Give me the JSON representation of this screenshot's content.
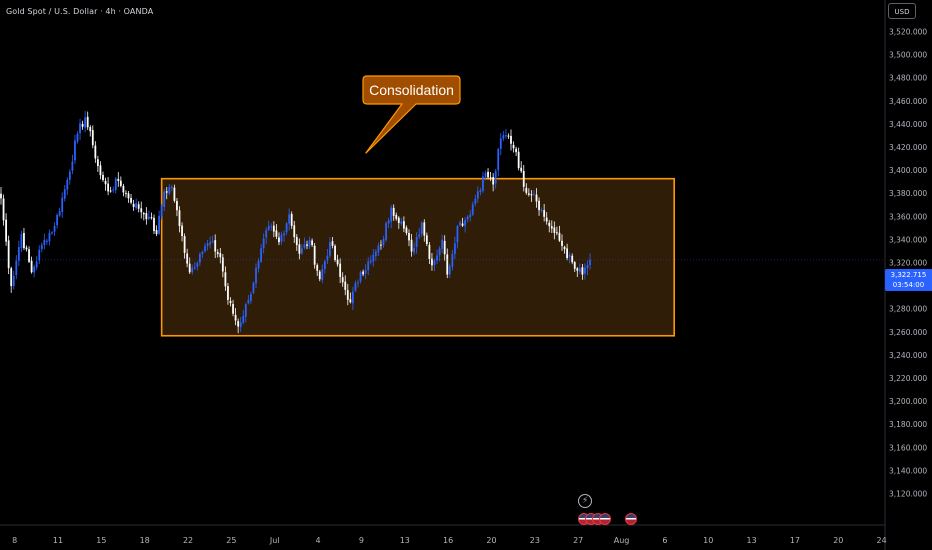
{
  "header": {
    "title": "Gold Spot / U.S. Dollar · 4h · OANDA",
    "currency": "USD"
  },
  "price_tag": {
    "price": "3,322.715",
    "countdown": "03:54:00"
  },
  "annotation": {
    "text": "Consolidation",
    "fill": "#a04d00",
    "border": "#ff9800"
  },
  "colors": {
    "up": "#2962ff",
    "down": "#ffffff",
    "zone_fill": "#2f1d08",
    "zone_border": "#ff9800",
    "axis_text": "#b2b5be",
    "background": "#000000"
  },
  "events": {
    "flash_icon": "lightning-icon",
    "flags": [
      "us-flag-icon",
      "us-flag-icon",
      "us-flag-icon",
      "us-flag-icon",
      "us-flag-icon"
    ]
  },
  "chart_data": {
    "type": "candlestick",
    "title": "Gold Spot / U.S. Dollar · 4h · OANDA",
    "ylim": [
      3115,
      3530
    ],
    "y_ticks": [
      3120,
      3140,
      3160,
      3180,
      3200,
      3220,
      3240,
      3260,
      3280,
      3300,
      3320,
      3340,
      3360,
      3380,
      3400,
      3420,
      3440,
      3460,
      3480,
      3500,
      3520
    ],
    "y_tick_labels": [
      "3,120.000",
      "3,140.000",
      "3,160.000",
      "3,180.000",
      "3,200.000",
      "3,220.000",
      "3,240.000",
      "3,260.000",
      "3,280.000",
      "3,300.000",
      "3,320.000",
      "3,340.000",
      "3,360.000",
      "3,380.000",
      "3,400.000",
      "3,420.000",
      "3,440.000",
      "3,460.000",
      "3,480.000",
      "3,500.000",
      "3,520.000"
    ],
    "x_ticks": [
      "8",
      "11",
      "15",
      "18",
      "22",
      "25",
      "Jul",
      "4",
      "9",
      "13",
      "16",
      "20",
      "23",
      "27",
      "Aug",
      "6",
      "10",
      "13",
      "17",
      "20",
      "24"
    ],
    "x_tick_index": [
      3,
      20,
      37,
      54,
      71,
      88,
      105,
      122,
      139,
      156,
      173,
      190,
      207,
      224,
      241,
      258,
      275,
      292,
      309,
      326,
      343
    ],
    "last_price": 3322.715,
    "zone": {
      "index_start": 63,
      "index_end": 264,
      "price_low": 3257,
      "price_high": 3393
    },
    "callout_pointer": {
      "index": 143,
      "price": 3415
    },
    "key_prices": [
      {
        "i": 0,
        "c": 3376
      },
      {
        "i": 4,
        "c": 3300
      },
      {
        "i": 8,
        "c": 3345
      },
      {
        "i": 12,
        "c": 3312
      },
      {
        "i": 17,
        "c": 3340
      },
      {
        "i": 21,
        "c": 3352
      },
      {
        "i": 26,
        "c": 3392
      },
      {
        "i": 30,
        "c": 3432
      },
      {
        "i": 33,
        "c": 3446
      },
      {
        "i": 36,
        "c": 3422
      },
      {
        "i": 39,
        "c": 3396
      },
      {
        "i": 42,
        "c": 3382
      },
      {
        "i": 46,
        "c": 3391
      },
      {
        "i": 50,
        "c": 3376
      },
      {
        "i": 54,
        "c": 3367
      },
      {
        "i": 58,
        "c": 3360
      },
      {
        "i": 61,
        "c": 3345
      },
      {
        "i": 64,
        "c": 3382
      },
      {
        "i": 67,
        "c": 3386
      },
      {
        "i": 70,
        "c": 3352
      },
      {
        "i": 74,
        "c": 3312
      },
      {
        "i": 78,
        "c": 3328
      },
      {
        "i": 82,
        "c": 3338
      },
      {
        "i": 86,
        "c": 3325
      },
      {
        "i": 89,
        "c": 3288
      },
      {
        "i": 93,
        "c": 3265
      },
      {
        "i": 97,
        "c": 3288
      },
      {
        "i": 101,
        "c": 3322
      },
      {
        "i": 105,
        "c": 3352
      },
      {
        "i": 109,
        "c": 3338
      },
      {
        "i": 113,
        "c": 3362
      },
      {
        "i": 117,
        "c": 3328
      },
      {
        "i": 121,
        "c": 3340
      },
      {
        "i": 125,
        "c": 3306
      },
      {
        "i": 129,
        "c": 3338
      },
      {
        "i": 133,
        "c": 3308
      },
      {
        "i": 137,
        "c": 3286
      },
      {
        "i": 141,
        "c": 3312
      },
      {
        "i": 145,
        "c": 3322
      },
      {
        "i": 149,
        "c": 3335
      },
      {
        "i": 153,
        "c": 3368
      },
      {
        "i": 157,
        "c": 3356
      },
      {
        "i": 161,
        "c": 3330
      },
      {
        "i": 165,
        "c": 3355
      },
      {
        "i": 169,
        "c": 3318
      },
      {
        "i": 173,
        "c": 3340
      },
      {
        "i": 175,
        "c": 3310
      },
      {
        "i": 179,
        "c": 3352
      },
      {
        "i": 183,
        "c": 3360
      },
      {
        "i": 187,
        "c": 3382
      },
      {
        "i": 190,
        "c": 3398
      },
      {
        "i": 193,
        "c": 3388
      },
      {
        "i": 196,
        "c": 3428
      },
      {
        "i": 199,
        "c": 3430
      },
      {
        "i": 202,
        "c": 3416
      },
      {
        "i": 205,
        "c": 3386
      },
      {
        "i": 209,
        "c": 3380
      },
      {
        "i": 213,
        "c": 3360
      },
      {
        "i": 217,
        "c": 3346
      },
      {
        "i": 221,
        "c": 3332
      },
      {
        "i": 225,
        "c": 3315
      },
      {
        "i": 228,
        "c": 3310
      },
      {
        "i": 231,
        "c": 3323
      }
    ]
  }
}
